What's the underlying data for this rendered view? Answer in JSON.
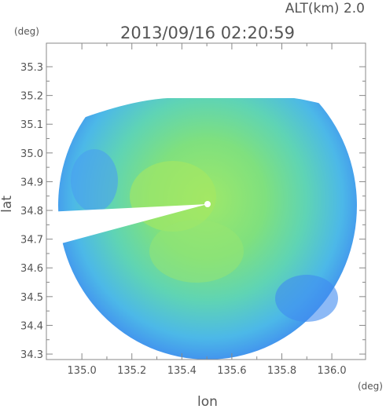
{
  "chart_data": {
    "type": "map",
    "title": "2013/09/16 02:20:59",
    "subtitle": "ALT(km) 2.0",
    "x_label": "lon",
    "y_label": "lat",
    "x_unit": "(deg)",
    "y_unit": "(deg)",
    "xlim": [
      134.858,
      136.135
    ],
    "ylim": [
      34.281,
      35.382
    ],
    "xticks": [
      {
        "value": 135,
        "label": "135.0"
      },
      135.2,
      135.4,
      135.6,
      135.8,
      {
        "value": 136,
        "label": "136.0"
      }
    ],
    "yticks": [
      34.3,
      34.4,
      34.5,
      34.6,
      34.7,
      34.8,
      34.9,
      {
        "value": 35,
        "label": "35.0"
      },
      35.1,
      35.2,
      35.3
    ]
  }
}
